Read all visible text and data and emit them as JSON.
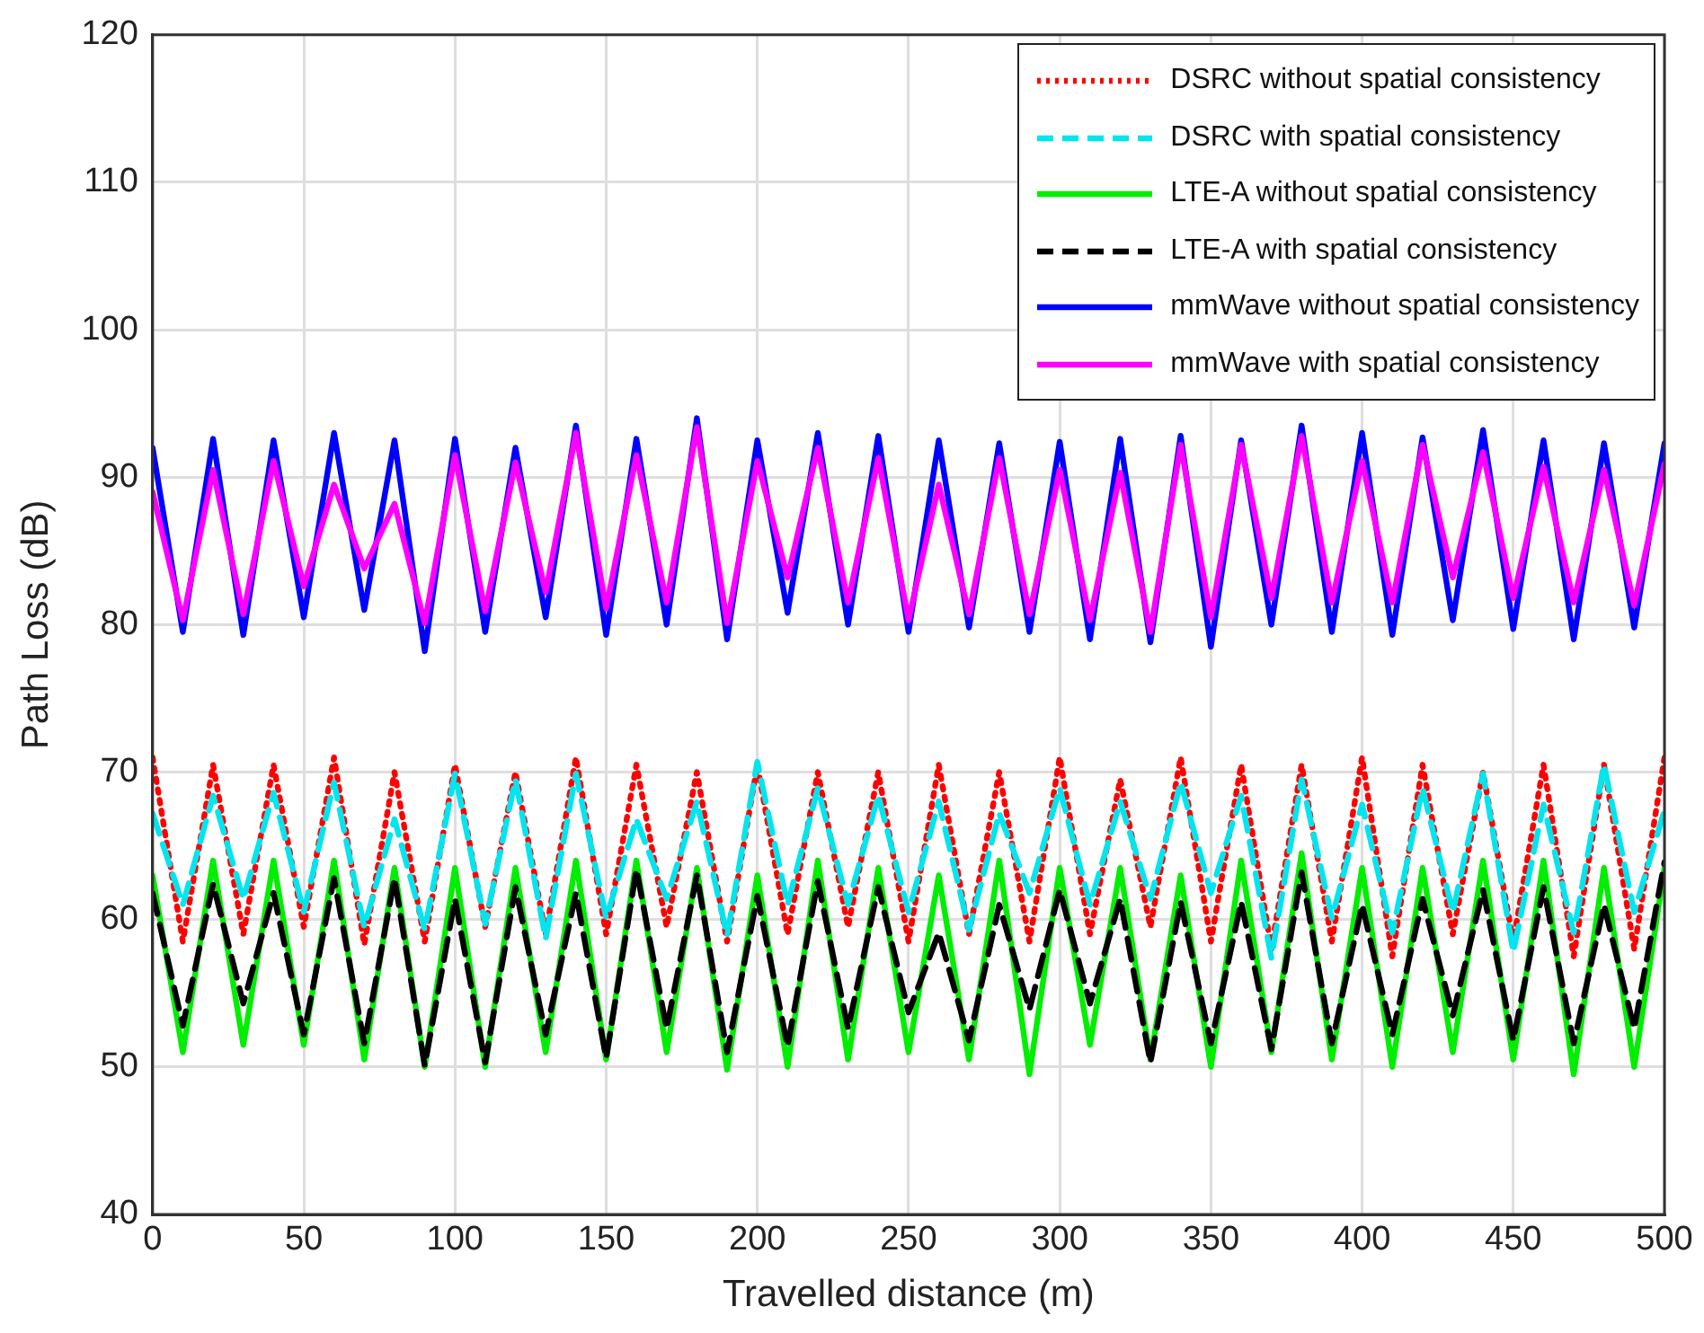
{
  "chart_data": {
    "type": "line",
    "xlabel": "Travelled distance (m)",
    "ylabel": "Path Loss (dB)",
    "x": [
      0,
      10,
      20,
      30,
      40,
      50,
      60,
      70,
      80,
      90,
      100,
      110,
      120,
      130,
      140,
      150,
      160,
      170,
      180,
      190,
      200,
      210,
      220,
      230,
      240,
      250,
      260,
      270,
      280,
      290,
      300,
      310,
      320,
      330,
      340,
      350,
      360,
      370,
      380,
      390,
      400,
      410,
      420,
      430,
      440,
      450,
      460,
      470,
      480,
      490,
      500
    ],
    "xlim": [
      0,
      500
    ],
    "xticks": [
      0,
      50,
      100,
      150,
      200,
      250,
      300,
      350,
      400,
      450,
      500
    ],
    "ylim": [
      40,
      120
    ],
    "yticks": [
      40,
      50,
      60,
      70,
      80,
      90,
      100,
      110,
      120
    ],
    "grid": true,
    "legend": "top right",
    "marker": "none",
    "series": [
      {
        "name": "DSRC without spatial consistency",
        "color": "#ff0000",
        "line_style": "dotted",
        "values": [
          71,
          58.5,
          70.5,
          59,
          70.5,
          59.5,
          71,
          58.3,
          70,
          58.5,
          70.5,
          59.5,
          70,
          59,
          71,
          59,
          70.5,
          59.5,
          70,
          58.5,
          70.5,
          59,
          70,
          59.5,
          70,
          58.5,
          70.5,
          59,
          70,
          58.5,
          71,
          59,
          69.5,
          59.5,
          71,
          58.5,
          70.5,
          58,
          70.5,
          58.5,
          71,
          57.5,
          70.5,
          59,
          70,
          58.5,
          70.5,
          57.5,
          70.5,
          58,
          71
        ]
      },
      {
        "name": "DSRC with spatial consistency",
        "color": "#00e5ee",
        "line_style": "dashed",
        "values": [
          67.2,
          61.0,
          68.4,
          61.4,
          68.6,
          60.5,
          69.3,
          59.5,
          66.8,
          59.3,
          69.9,
          59.7,
          69.5,
          58.7,
          69.9,
          60.1,
          66.8,
          61.4,
          68.0,
          58.9,
          70.7,
          61.0,
          68.9,
          61.0,
          68.4,
          60.5,
          68.0,
          59.3,
          67.2,
          61.8,
          68.9,
          61.0,
          68.0,
          61.4,
          69.3,
          61.8,
          68.4,
          57.4,
          69.5,
          60.1,
          67.8,
          59.1,
          68.9,
          60.5,
          69.9,
          57.8,
          67.8,
          59.1,
          70.5,
          60.5,
          67.4
        ]
      },
      {
        "name": "LTE-A without spatial consistency",
        "color": "#00ee00",
        "line_style": "solid",
        "values": [
          63,
          51,
          64,
          51.5,
          64,
          51.5,
          64,
          50.5,
          63.5,
          50,
          63.5,
          50,
          63.5,
          51,
          64,
          50.5,
          64,
          51,
          63.5,
          49.8,
          63,
          50,
          64,
          50.5,
          63.5,
          51,
          63,
          50.5,
          64,
          49.5,
          63.5,
          51.5,
          63.5,
          50.5,
          63,
          50,
          64,
          51,
          64.5,
          50.5,
          63.5,
          50,
          63.5,
          51,
          64,
          50.5,
          64,
          49.5,
          63.5,
          50,
          63.5
        ]
      },
      {
        "name": "LTE-A with spatial consistency",
        "color": "#000000",
        "line_style": "dashed",
        "values": [
          61.8,
          52.8,
          62.4,
          54.3,
          61.8,
          52.2,
          62.8,
          51.6,
          62.8,
          50.1,
          61.4,
          50.3,
          62.2,
          52.2,
          61.8,
          50.6,
          63.4,
          52.6,
          63.0,
          51.0,
          61.6,
          51.4,
          62.6,
          52.6,
          62.2,
          53.7,
          59.1,
          51.8,
          61.0,
          53.9,
          62.0,
          54.3,
          61.4,
          50.3,
          61.2,
          51.6,
          61.2,
          51.2,
          63.2,
          51.6,
          61.0,
          52.2,
          61.4,
          53.5,
          62.0,
          51.8,
          62.2,
          51.6,
          61.0,
          52.6,
          63.9
        ]
      },
      {
        "name": "mmWave without spatial consistency",
        "color": "#0000ff",
        "line_style": "solid",
        "values": [
          92,
          79.5,
          92.6,
          79.3,
          92.5,
          80.5,
          93,
          81,
          92.5,
          78.2,
          92.6,
          79.5,
          92,
          80.5,
          93.5,
          79.3,
          92.6,
          80,
          94,
          79,
          92.5,
          80.8,
          93,
          80,
          92.8,
          79.5,
          92.5,
          79.8,
          92.3,
          79.5,
          92.4,
          79,
          92.6,
          78.8,
          92.8,
          78.5,
          92.5,
          80,
          93.5,
          79.5,
          93,
          79.3,
          92.7,
          80.3,
          93.2,
          79.7,
          92.5,
          79,
          92.3,
          79.8,
          92.3
        ]
      },
      {
        "name": "mmWave with spatial consistency",
        "color": "#ff00ff",
        "line_style": "solid",
        "values": [
          89.0,
          80.3,
          90.5,
          80.7,
          91.1,
          82.6,
          89.5,
          83.8,
          88.2,
          80.1,
          91.5,
          80.9,
          91.0,
          82.2,
          93.0,
          81.1,
          91.5,
          81.5,
          93.4,
          80.1,
          91.1,
          83.2,
          92.0,
          81.5,
          91.3,
          80.3,
          89.5,
          80.7,
          91.3,
          80.7,
          90.5,
          80.3,
          90.3,
          79.5,
          92.2,
          80.5,
          92.2,
          81.8,
          92.8,
          81.5,
          91.1,
          81.5,
          92.2,
          83.2,
          91.7,
          81.8,
          90.7,
          81.5,
          90.5,
          81.3,
          90.9
        ]
      }
    ]
  }
}
